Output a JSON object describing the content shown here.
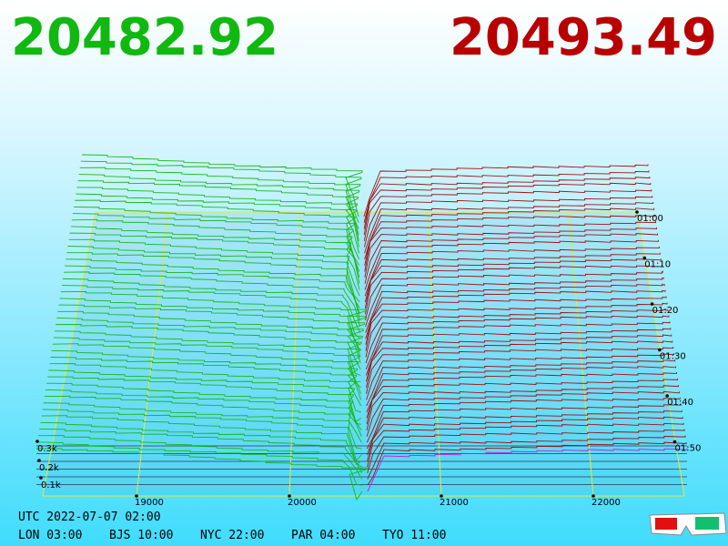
{
  "header": {
    "bid": "20482.92",
    "ask": "20493.49"
  },
  "x_axis": {
    "ticks": [
      "19000",
      "20000",
      "21000",
      "22000"
    ]
  },
  "depth_axis": {
    "ticks": [
      "0.1k",
      "0.2k",
      "0.3k"
    ]
  },
  "time_axis": {
    "ticks": [
      "01:00",
      "01:10",
      "01:20",
      "01:30",
      "01:40",
      "01:50"
    ]
  },
  "footer": {
    "utc": "UTC 2022-07-07 02:00",
    "zones": [
      "LON 03:00",
      "BJS 10:00",
      "NYC 22:00",
      "PAR 04:00",
      "TYO 11:00"
    ]
  }
}
